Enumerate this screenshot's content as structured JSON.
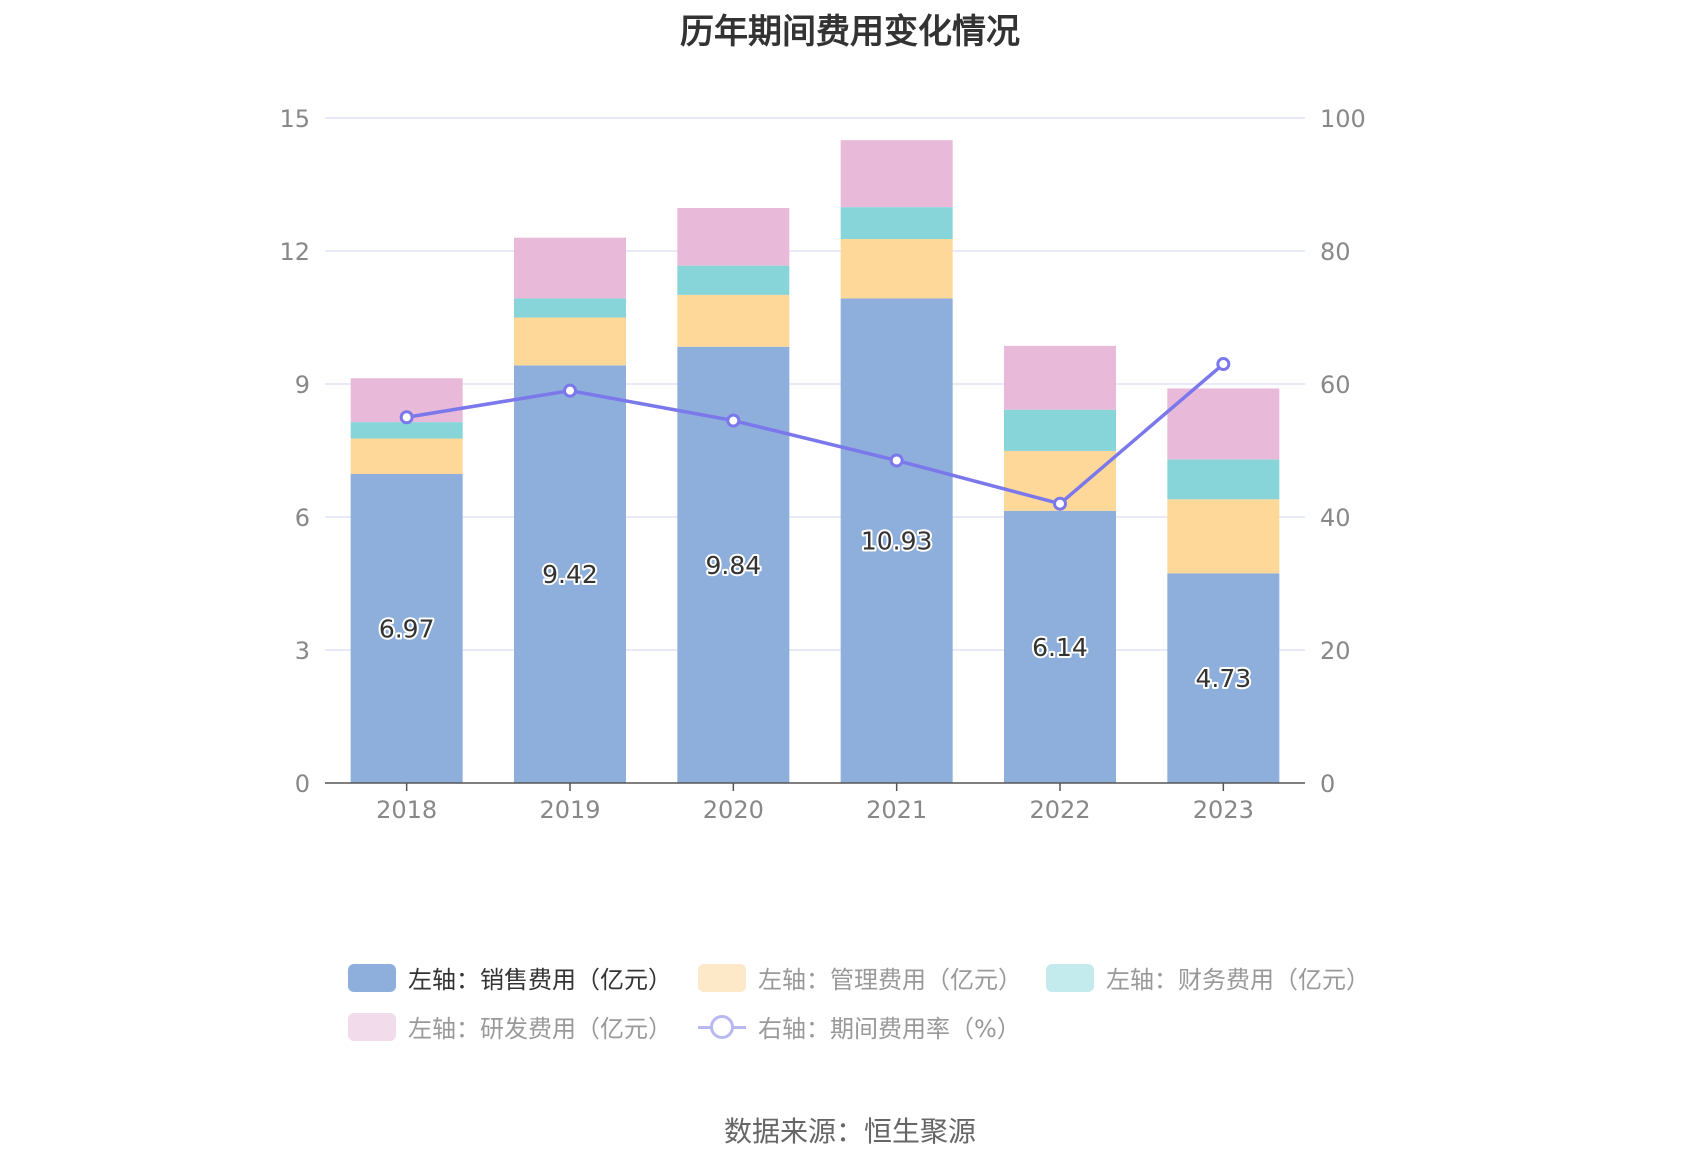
{
  "title": "历年期间费用变化情况",
  "source": "数据来源：恒生聚源",
  "chart_data": {
    "type": "bar",
    "stacked": true,
    "categories": [
      "2018",
      "2019",
      "2020",
      "2021",
      "2022",
      "2023"
    ],
    "left_axis": {
      "ylim": [
        0,
        15
      ],
      "ticks": [
        "0",
        "3",
        "6",
        "9",
        "12",
        "15"
      ]
    },
    "right_axis": {
      "ylim": [
        0,
        100
      ],
      "ticks": [
        "0",
        "20",
        "40",
        "60",
        "80",
        "100"
      ]
    },
    "series": [
      {
        "name": "左轴：销售费用（亿元）",
        "axis": "left",
        "type": "bar",
        "color": "#8eaedb",
        "values": [
          6.97,
          9.42,
          9.84,
          10.93,
          6.14,
          4.73
        ],
        "labels": [
          "6.97",
          "9.42",
          "9.84",
          "10.93",
          "6.14",
          "4.73"
        ]
      },
      {
        "name": "左轴：管理费用（亿元）",
        "axis": "left",
        "type": "bar",
        "color": "#fdd899",
        "values": [
          0.8,
          1.08,
          1.17,
          1.34,
          1.35,
          1.67
        ]
      },
      {
        "name": "左轴：财务费用（亿元）",
        "axis": "left",
        "type": "bar",
        "color": "#88d5d9",
        "values": [
          0.37,
          0.43,
          0.66,
          0.72,
          0.93,
          0.9
        ]
      },
      {
        "name": "左轴：研发费用（亿元）",
        "axis": "left",
        "type": "bar",
        "color": "#e8b9d8",
        "values": [
          0.99,
          1.37,
          1.3,
          1.51,
          1.44,
          1.6
        ]
      },
      {
        "name": "右轴：期间费用率（%）",
        "axis": "right",
        "type": "line",
        "color": "#7b78ec",
        "values": [
          55.0,
          59.0,
          54.5,
          48.5,
          42.0,
          63.0
        ]
      }
    ],
    "grid": true,
    "legend_position": "bottom"
  }
}
